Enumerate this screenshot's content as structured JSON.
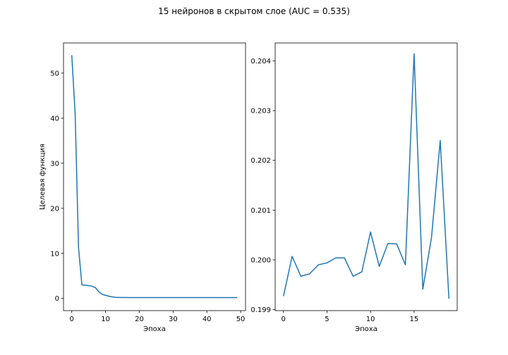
{
  "figure": {
    "title": "15 нейронов в скрытом слое (AUC = 0.535)"
  },
  "chart_data": [
    {
      "type": "line",
      "title": "",
      "xlabel": "Эпоха",
      "ylabel": "Целевая функция",
      "xlim": [
        -2.45,
        51.45
      ],
      "ylim": [
        -2.7,
        56.7
      ],
      "xticks": [
        0,
        10,
        20,
        30,
        40,
        50
      ],
      "yticks": [
        0,
        10,
        20,
        30,
        40,
        50
      ],
      "ytick_labels": [
        "0",
        "10",
        "20",
        "30",
        "40",
        "50"
      ],
      "grid": false,
      "line_color": "#1f77b4",
      "series": [
        {
          "x": [
            0,
            1,
            2,
            3,
            4,
            5,
            6,
            7,
            8,
            9,
            10,
            11,
            12,
            13,
            14,
            15,
            16,
            17,
            18,
            19,
            20,
            21,
            22,
            23,
            24,
            25,
            26,
            27,
            28,
            29,
            30,
            31,
            32,
            33,
            34,
            35,
            36,
            37,
            38,
            39,
            40,
            41,
            42,
            43,
            44,
            45,
            46,
            47,
            48,
            49
          ],
          "values": [
            54.0,
            41.0,
            11.3,
            3.0,
            2.95,
            2.85,
            2.7,
            2.4,
            1.5,
            0.9,
            0.7,
            0.5,
            0.35,
            0.25,
            0.22,
            0.21,
            0.21,
            0.2,
            0.2,
            0.2,
            0.2,
            0.2,
            0.2,
            0.2,
            0.2,
            0.2,
            0.2,
            0.2,
            0.2,
            0.2,
            0.2,
            0.2,
            0.2,
            0.2,
            0.2,
            0.2,
            0.2,
            0.2,
            0.2,
            0.2,
            0.2,
            0.2,
            0.2,
            0.2,
            0.2,
            0.2,
            0.2,
            0.2,
            0.2,
            0.2
          ]
        }
      ]
    },
    {
      "type": "line",
      "title": "",
      "xlabel": "Эпоха",
      "ylabel": "",
      "xlim": [
        -0.95,
        19.95
      ],
      "ylim": [
        0.19898,
        0.20436
      ],
      "xticks": [
        0,
        5,
        10,
        15
      ],
      "yticks": [
        0.199,
        0.2,
        0.201,
        0.202,
        0.203,
        0.204
      ],
      "ytick_labels": [
        "0.199",
        "0.200",
        "0.201",
        "0.202",
        "0.203",
        "0.204"
      ],
      "grid": false,
      "line_color": "#1f77b4",
      "series": [
        {
          "x": [
            0,
            1,
            2,
            3,
            4,
            5,
            6,
            7,
            8,
            9,
            10,
            11,
            12,
            13,
            14,
            15,
            16,
            17,
            18,
            19
          ],
          "values": [
            0.19927,
            0.20007,
            0.19967,
            0.19972,
            0.1999,
            0.19994,
            0.20004,
            0.20004,
            0.19967,
            0.19976,
            0.20056,
            0.19987,
            0.20033,
            0.20032,
            0.1999,
            0.20414,
            0.19941,
            0.20045,
            0.2024,
            0.19922
          ]
        }
      ]
    }
  ]
}
